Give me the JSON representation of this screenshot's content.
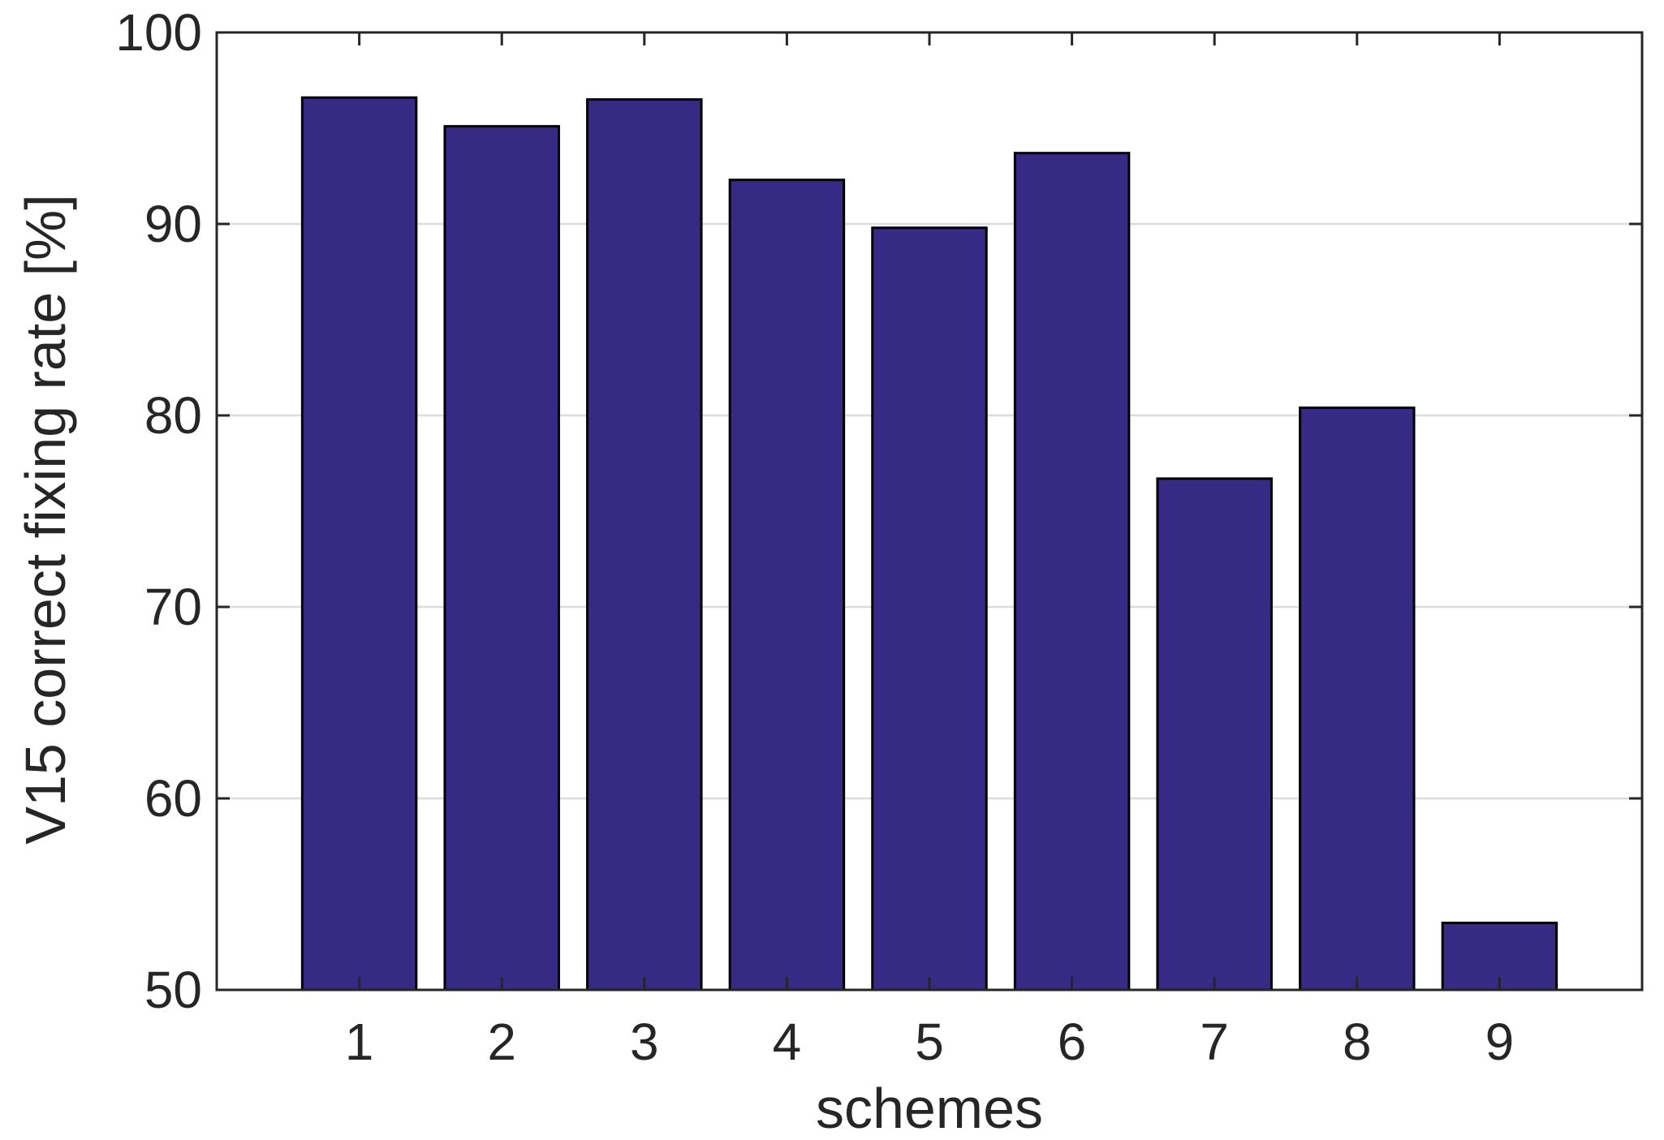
{
  "chart_data": {
    "type": "bar",
    "title": "",
    "xlabel": "schemes",
    "ylabel": "V15 correct fixing rate [%]",
    "categories": [
      "1",
      "2",
      "3",
      "4",
      "5",
      "6",
      "7",
      "8",
      "9"
    ],
    "values": [
      96.6,
      95.1,
      96.5,
      92.3,
      89.8,
      93.7,
      76.7,
      80.4,
      53.5
    ],
    "ylim": [
      50,
      100
    ],
    "yticks": [
      50,
      60,
      70,
      80,
      90,
      100
    ],
    "ytick_labels": [
      "50",
      "60",
      "70",
      "80",
      "90",
      "100"
    ],
    "grid": "horizontal",
    "legend": "none",
    "colors": {
      "bar_fill": "#362a85",
      "bar_edge": "#000000",
      "axis": "#262626",
      "grid": "#dcdcdc"
    }
  }
}
